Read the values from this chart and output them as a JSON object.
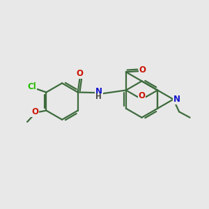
{
  "bg_color": "#e8e8e8",
  "bond_color": "#3d6b3d",
  "bond_width": 1.6,
  "atom_colors": {
    "O": "#cc1100",
    "N": "#1111cc",
    "Cl": "#22bb00"
  },
  "font_size": 8.5,
  "fig_width": 3.0,
  "fig_height": 3.0,
  "dpi": 100
}
